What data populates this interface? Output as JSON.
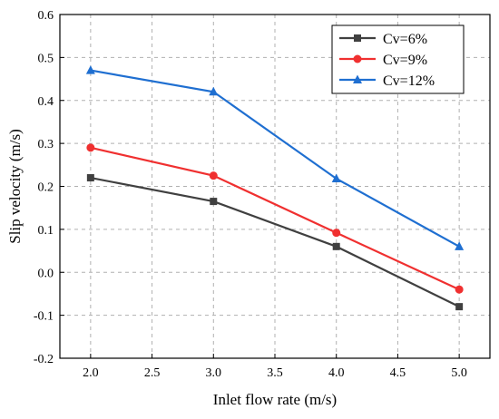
{
  "chart_data": {
    "type": "line",
    "title": "",
    "xlabel": "Inlet flow rate (m/s)",
    "ylabel": "Slip velocity (m/s)",
    "xlim": [
      1.75,
      5.25
    ],
    "ylim": [
      -0.2,
      0.6
    ],
    "x_ticks": [
      "2.0",
      "2.5",
      "3.0",
      "3.5",
      "4.0",
      "4.5",
      "5.0"
    ],
    "y_ticks": [
      "-0.2",
      "-0.1",
      "0.0",
      "0.1",
      "0.2",
      "0.3",
      "0.4",
      "0.5",
      "0.6"
    ],
    "grid": "dashed vertical and horizontal",
    "legend_position": "top-right",
    "x": [
      2.0,
      3.0,
      4.0,
      5.0
    ],
    "series": [
      {
        "name": "Cv=6%",
        "values": [
          0.22,
          0.165,
          0.06,
          -0.08
        ],
        "color": "#404040",
        "marker": "square"
      },
      {
        "name": "Cv=9%",
        "values": [
          0.29,
          0.225,
          0.092,
          -0.04
        ],
        "color": "#f03030",
        "marker": "circle"
      },
      {
        "name": "Cv=12%",
        "values": [
          0.47,
          0.42,
          0.218,
          0.06
        ],
        "color": "#1f6fd1",
        "marker": "triangle"
      }
    ]
  }
}
